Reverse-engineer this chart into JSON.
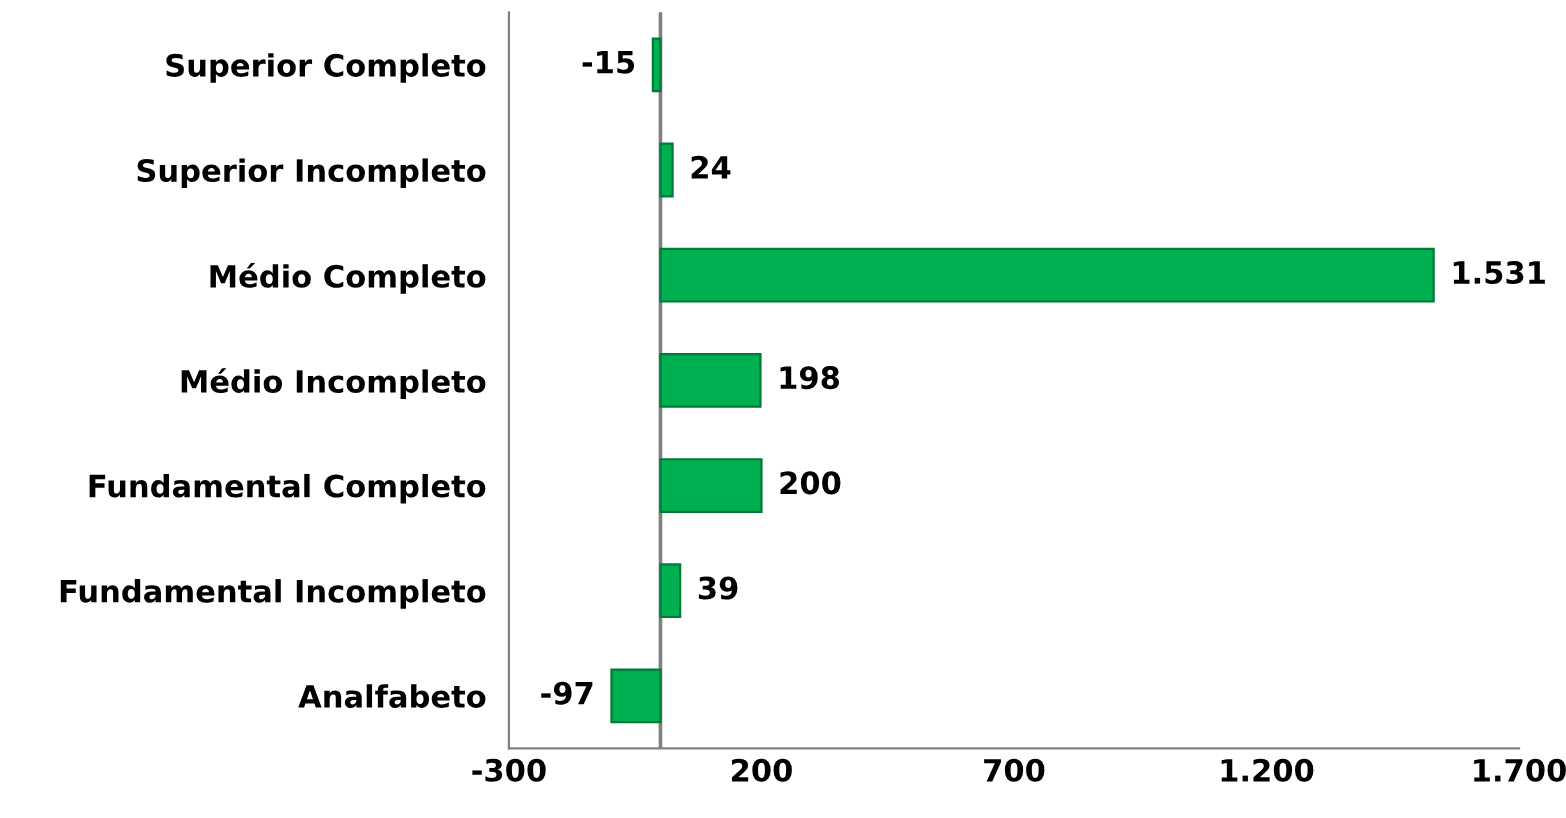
{
  "chart_data": {
    "type": "bar",
    "orientation": "horizontal",
    "categories": [
      "Superior Completo",
      "Superior Incompleto",
      "Médio Completo",
      "Médio Incompleto",
      "Fundamental Completo",
      "Fundamental Incompleto",
      "Analfabeto"
    ],
    "values": [
      -15,
      24,
      1531,
      198,
      200,
      39,
      -97
    ],
    "value_labels": [
      "-15",
      "24",
      "1.531",
      "198",
      "200",
      "39",
      "-97"
    ],
    "color": "#00b050",
    "xlim": [
      -300,
      1700
    ],
    "xticks": [
      -300,
      200,
      700,
      {
        "value": 1200,
        "label": "1.200"
      },
      {
        "value": 1700,
        "label": "1.700"
      }
    ],
    "ref_lines": [
      {
        "axis": "x",
        "value": 0,
        "color": "#808080"
      }
    ],
    "grid": false,
    "legend": false
  }
}
